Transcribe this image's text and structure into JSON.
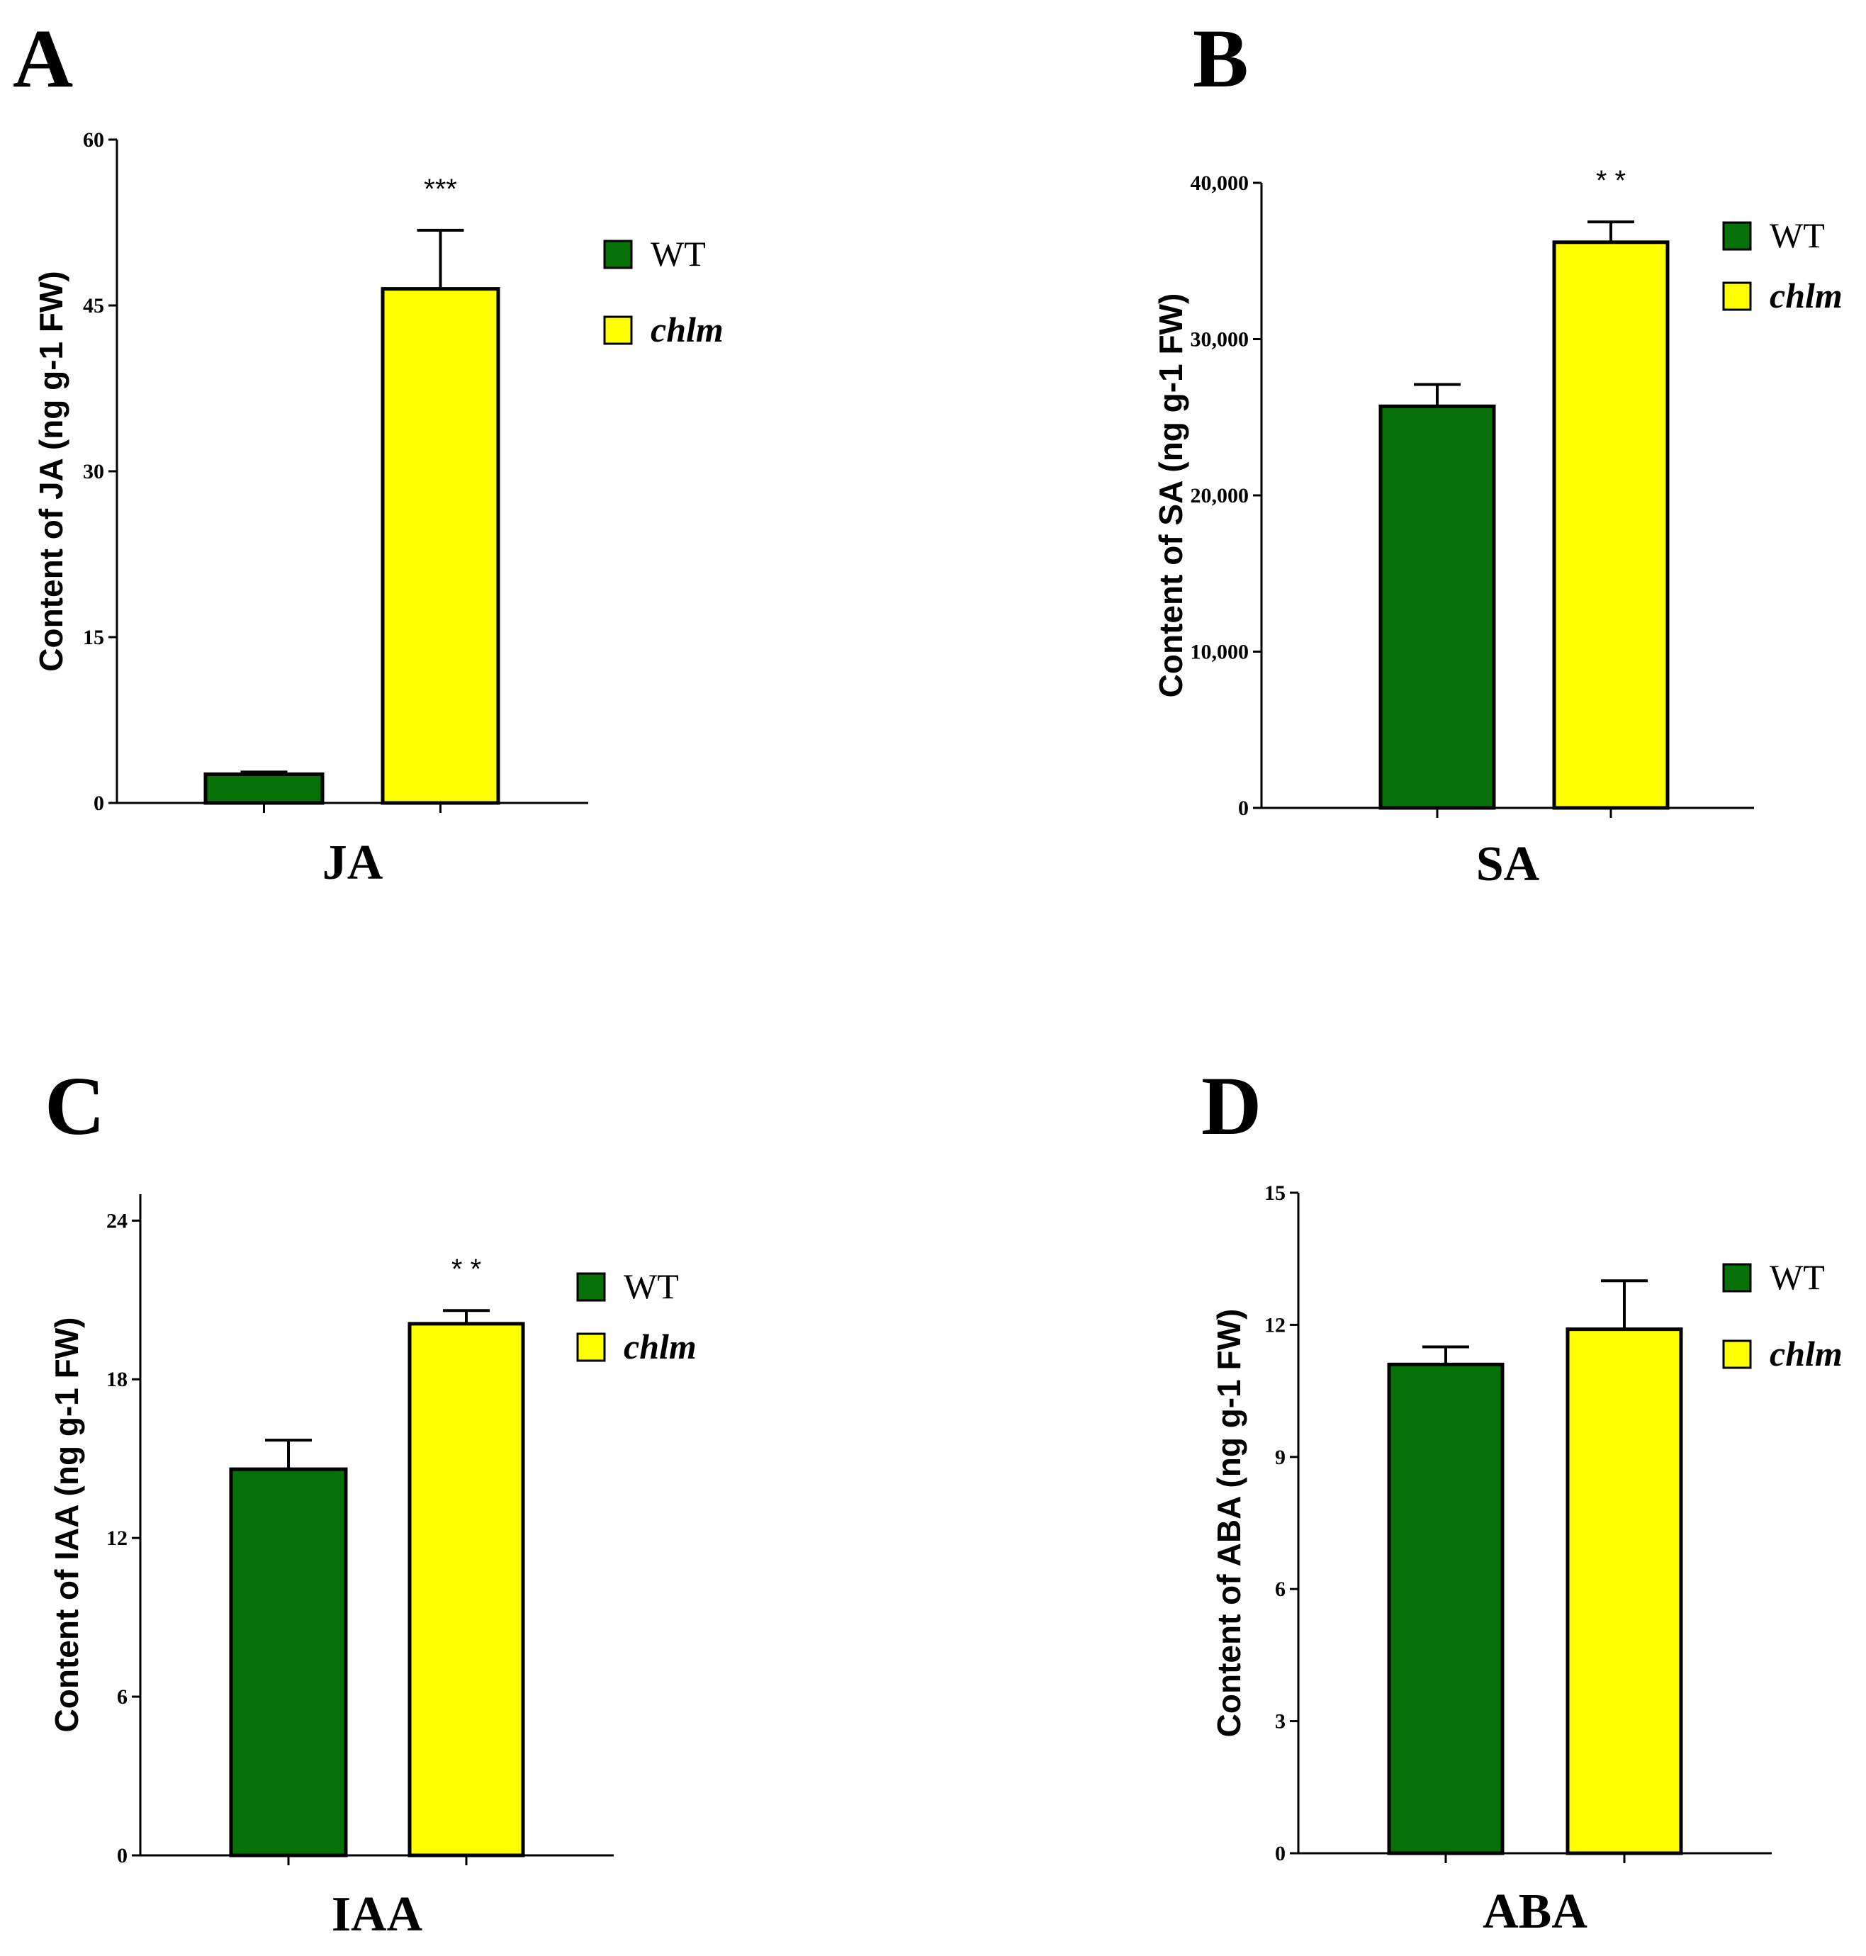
{
  "figure": {
    "colors": {
      "WT": "#067106",
      "chlm": "#ffff00",
      "axis": "#000000"
    }
  },
  "chart_data": [
    {
      "panel": "A",
      "type": "bar",
      "categories": [
        "WT",
        "chlm"
      ],
      "values": [
        2.6,
        46.5
      ],
      "errors": [
        0.2,
        5.3
      ],
      "xlabel": "JA",
      "ylabel": "Content of JA (ng g-1 FW)",
      "ylim": [
        0,
        60
      ],
      "yticks": [
        0,
        15,
        30,
        45,
        60
      ],
      "ytick_labels": [
        "0",
        "15",
        "30",
        "45",
        "60"
      ],
      "significance": "***",
      "legend": [
        "WT",
        "chlm"
      ],
      "legend_position": "top-right"
    },
    {
      "panel": "B",
      "type": "bar",
      "categories": [
        "WT",
        "chlm"
      ],
      "values": [
        25700,
        36200
      ],
      "errors": [
        1400,
        1300
      ],
      "xlabel": "SA",
      "ylabel": "Content of SA (ng g-1 FW)",
      "ylim": [
        0,
        40000
      ],
      "yticks": [
        0,
        10000,
        20000,
        30000,
        40000
      ],
      "ytick_labels": [
        "0",
        "10,000",
        "20,000",
        "30,000",
        "40,000"
      ],
      "significance": "* *",
      "legend": [
        "WT",
        "chlm"
      ],
      "legend_position": "top-right"
    },
    {
      "panel": "C",
      "type": "bar",
      "categories": [
        "WT",
        "chlm"
      ],
      "values": [
        14.6,
        20.1
      ],
      "errors": [
        1.1,
        0.5
      ],
      "xlabel": "IAA",
      "ylabel": "Content of IAA (ng g-1 FW)",
      "ylim": [
        0,
        25
      ],
      "yticks": [
        0,
        6,
        12,
        18,
        24
      ],
      "ytick_labels": [
        "0",
        "6",
        "12",
        "18",
        "24"
      ],
      "significance": "* *",
      "legend": [
        "WT",
        "chlm"
      ],
      "legend_position": "top-right"
    },
    {
      "panel": "D",
      "type": "bar",
      "categories": [
        "WT",
        "chlm"
      ],
      "values": [
        11.1,
        11.9
      ],
      "errors": [
        0.4,
        1.1
      ],
      "xlabel": "ABA",
      "ylabel": "Content of ABA (ng g-1 FW)",
      "ylim": [
        0,
        15
      ],
      "yticks": [
        0,
        3,
        6,
        9,
        12,
        15
      ],
      "ytick_labels": [
        "0",
        "3",
        "6",
        "9",
        "12",
        "15"
      ],
      "significance": "",
      "legend": [
        "WT",
        "chlm"
      ],
      "legend_position": "top-right"
    }
  ]
}
